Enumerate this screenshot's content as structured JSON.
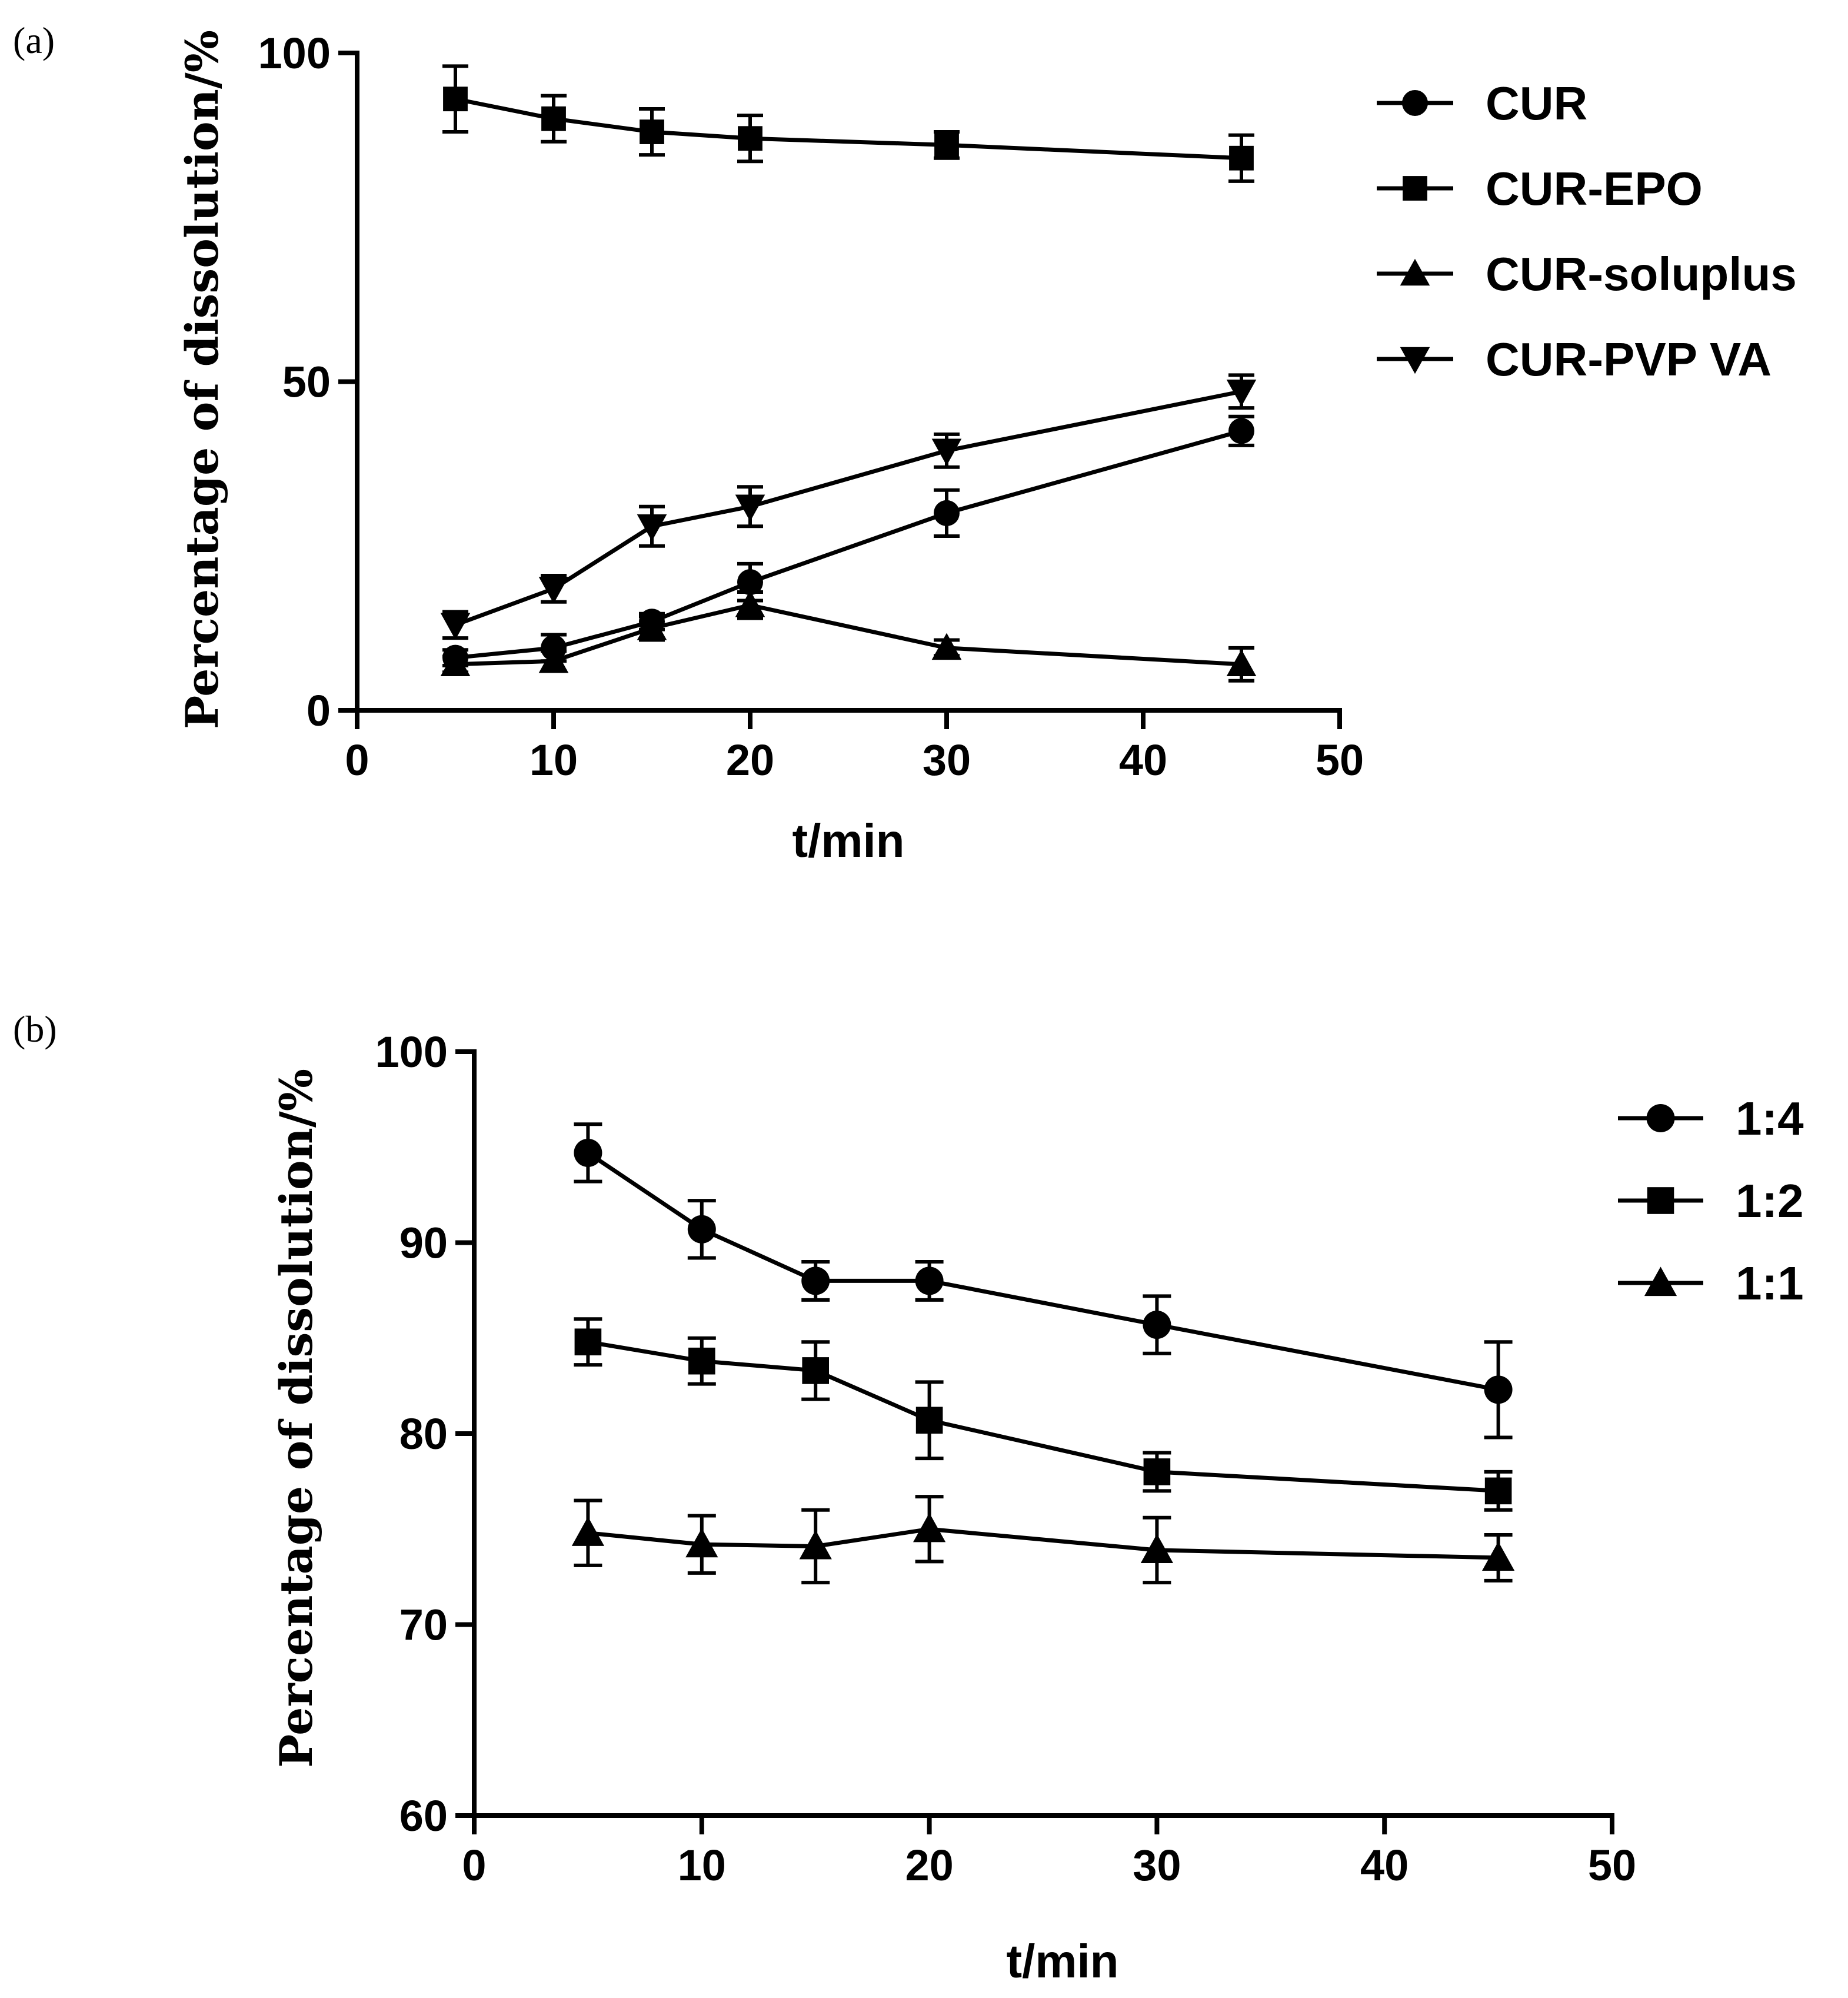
{
  "chart_data": [
    {
      "type": "line",
      "panel_label": "(a)",
      "xlabel": "t/min",
      "ylabel": "Percentage of dissolution/%",
      "xlim": [
        0,
        50
      ],
      "ylim": [
        0,
        100
      ],
      "xticks": [
        0,
        10,
        20,
        30,
        40,
        50
      ],
      "yticks": [
        0,
        50,
        100
      ],
      "x": [
        5,
        10,
        15,
        20,
        30,
        45
      ],
      "legend_position": "top-right",
      "series": [
        {
          "name": "CUR",
          "marker": "circle",
          "values": [
            8,
            9.5,
            13.5,
            19.5,
            30,
            42.5
          ],
          "errors": [
            1.2,
            2,
            1.2,
            2.8,
            3.5,
            2.2
          ]
        },
        {
          "name": "CUR-EPO",
          "marker": "square",
          "values": [
            93,
            90,
            88,
            87,
            86,
            84
          ],
          "errors": [
            5,
            3.5,
            3.5,
            3.5,
            2,
            3.5
          ]
        },
        {
          "name": "CUR-soluplus",
          "marker": "triangle-up",
          "values": [
            7,
            7.5,
            12.5,
            16,
            9.5,
            7
          ],
          "errors": [
            1.2,
            1.5,
            1.8,
            2,
            1.2,
            2.5
          ]
        },
        {
          "name": "CUR-PVP VA",
          "marker": "triangle-down",
          "values": [
            13,
            18.5,
            28,
            31,
            39.5,
            48.5
          ],
          "errors": [
            2,
            2,
            3,
            3,
            2.5,
            2.5
          ]
        }
      ]
    },
    {
      "type": "line",
      "panel_label": "(b)",
      "xlabel": "t/min",
      "ylabel": "Percentage of dissolution/%",
      "xlim": [
        0,
        50
      ],
      "ylim": [
        60,
        100
      ],
      "xticks": [
        0,
        10,
        20,
        30,
        40,
        50
      ],
      "yticks": [
        60,
        70,
        80,
        90,
        100
      ],
      "x": [
        5,
        10,
        15,
        20,
        30,
        45
      ],
      "legend_position": "top-right",
      "series": [
        {
          "name": "1:4",
          "marker": "circle",
          "values": [
            94.7,
            90.7,
            88,
            88,
            85.7,
            82.3
          ],
          "errors": [
            1.5,
            1.5,
            1,
            1,
            1.5,
            2.5
          ]
        },
        {
          "name": "1:2",
          "marker": "square",
          "values": [
            84.8,
            83.8,
            83.3,
            80.7,
            78,
            77
          ],
          "errors": [
            1.2,
            1.2,
            1.5,
            2,
            1,
            1
          ]
        },
        {
          "name": "1:1",
          "marker": "triangle-up",
          "values": [
            74.8,
            74.2,
            74.1,
            75,
            73.9,
            73.5
          ],
          "errors": [
            1.7,
            1.5,
            1.9,
            1.7,
            1.7,
            1.2
          ]
        }
      ]
    }
  ]
}
